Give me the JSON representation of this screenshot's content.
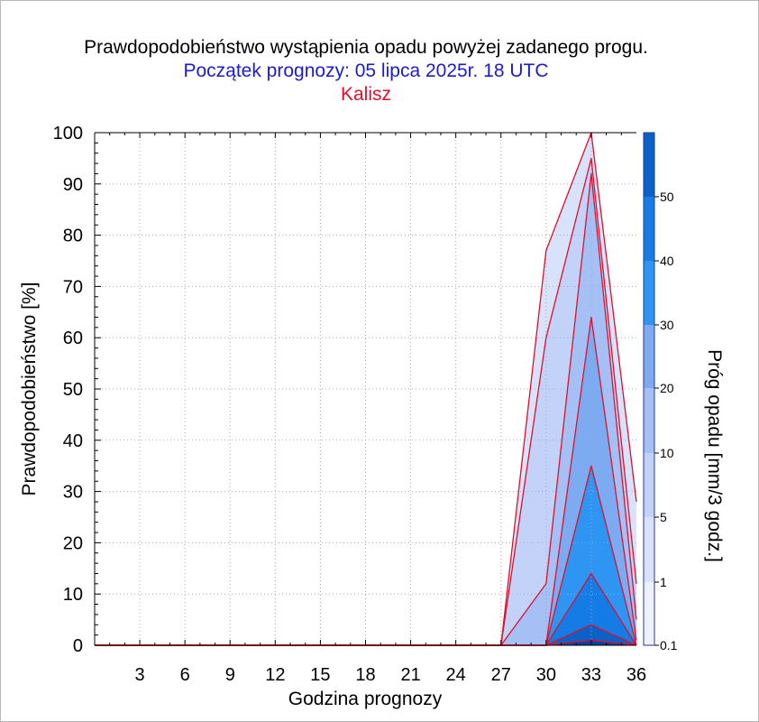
{
  "chart_data": {
    "type": "area",
    "title": "Prawdopodobieństwo wystąpienia opadu powyżej zadanego progu.",
    "subtitle": "Początek prognozy: 05 lipca 2025r. 18 UTC",
    "location": "Kalisz",
    "xlabel": "Godzina prognozy",
    "ylabel": "Prawdopodobieństwo [%]",
    "colorbar_label": "Próg opadu [mm/3 godz.]",
    "x": [
      0,
      3,
      6,
      9,
      12,
      15,
      18,
      21,
      24,
      27,
      30,
      33,
      36
    ],
    "xticks": [
      "3",
      "6",
      "9",
      "12",
      "15",
      "18",
      "21",
      "24",
      "27",
      "30",
      "33",
      "36"
    ],
    "yticks": [
      "0",
      "10",
      "20",
      "30",
      "40",
      "50",
      "60",
      "70",
      "80",
      "90",
      "100"
    ],
    "xlim": [
      0,
      36
    ],
    "ylim": [
      0,
      100
    ],
    "grid": true,
    "series": [
      {
        "name": "0.1",
        "color": "#d9e2fb",
        "values": [
          0,
          0,
          0,
          0,
          0,
          0,
          0,
          0,
          0,
          0,
          77,
          100,
          28
        ]
      },
      {
        "name": "1",
        "color": "#c3d2f8",
        "values": [
          0,
          0,
          0,
          0,
          0,
          0,
          0,
          0,
          0,
          0,
          60,
          95,
          12
        ]
      },
      {
        "name": "5",
        "color": "#a4c0f5",
        "values": [
          0,
          0,
          0,
          0,
          0,
          0,
          0,
          0,
          0,
          0,
          12,
          92,
          5
        ]
      },
      {
        "name": "10",
        "color": "#7cabf2",
        "values": [
          0,
          0,
          0,
          0,
          0,
          0,
          0,
          0,
          0,
          0,
          0,
          64,
          1
        ]
      },
      {
        "name": "20",
        "color": "#2f95f2",
        "values": [
          0,
          0,
          0,
          0,
          0,
          0,
          0,
          0,
          0,
          0,
          0,
          35,
          0
        ]
      },
      {
        "name": "30",
        "color": "#157be5",
        "values": [
          0,
          0,
          0,
          0,
          0,
          0,
          0,
          0,
          0,
          0,
          0,
          14,
          0
        ]
      },
      {
        "name": "40",
        "color": "#0a62c9",
        "values": [
          0,
          0,
          0,
          0,
          0,
          0,
          0,
          0,
          0,
          0,
          0,
          4,
          0
        ]
      },
      {
        "name": "50",
        "color": "#0443a6",
        "values": [
          0,
          0,
          0,
          0,
          0,
          0,
          0,
          0,
          0,
          0,
          0,
          1,
          0
        ]
      }
    ],
    "colorbar": {
      "labels": [
        "0.1",
        "1",
        "5",
        "10",
        "20",
        "30",
        "40",
        "50"
      ],
      "colors": [
        "#eef2fd",
        "#d9e2fb",
        "#c3d2f8",
        "#a4c0f5",
        "#7cabf2",
        "#2f95f2",
        "#157be5",
        "#0a62c9",
        "#0443a6"
      ]
    },
    "line_color": "#e0102a"
  }
}
